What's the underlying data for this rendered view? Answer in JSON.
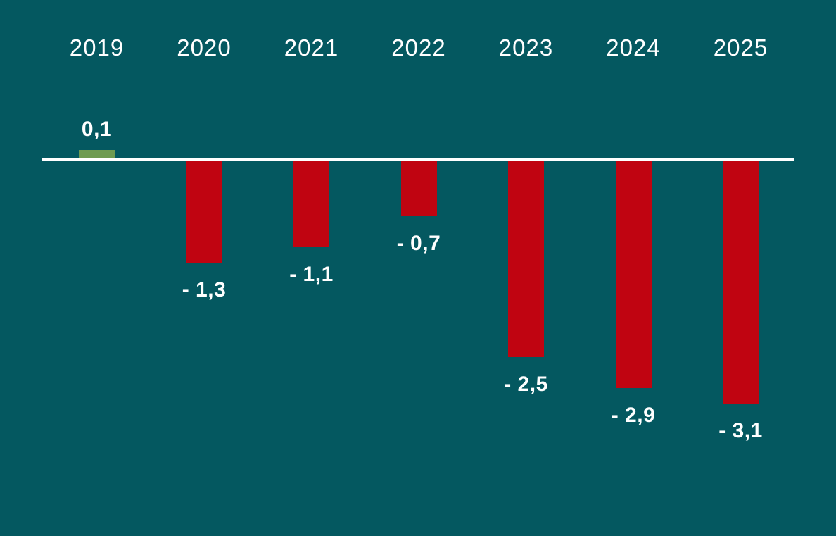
{
  "chart_data": {
    "type": "bar",
    "categories": [
      "2019",
      "2020",
      "2021",
      "2022",
      "2023",
      "2024",
      "2025"
    ],
    "values": [
      0.1,
      -1.3,
      -1.1,
      -0.7,
      -2.5,
      -2.9,
      -3.1
    ],
    "value_labels": [
      "0,1",
      "- 1,3",
      "- 1,1",
      "- 0,7",
      "- 2,5",
      "- 2,9",
      "- 3,1"
    ],
    "title": "",
    "xlabel": "",
    "ylabel": "",
    "ylim": [
      -3.5,
      0.5
    ],
    "grid": false,
    "legend": null,
    "x_axis_position": "top",
    "decimal_separator": ",",
    "colors": {
      "background": "#045860",
      "positive_bar": "#6f9b51",
      "negative_bar": "#c00411",
      "baseline": "#ffffff",
      "text": "#ffffff"
    }
  }
}
